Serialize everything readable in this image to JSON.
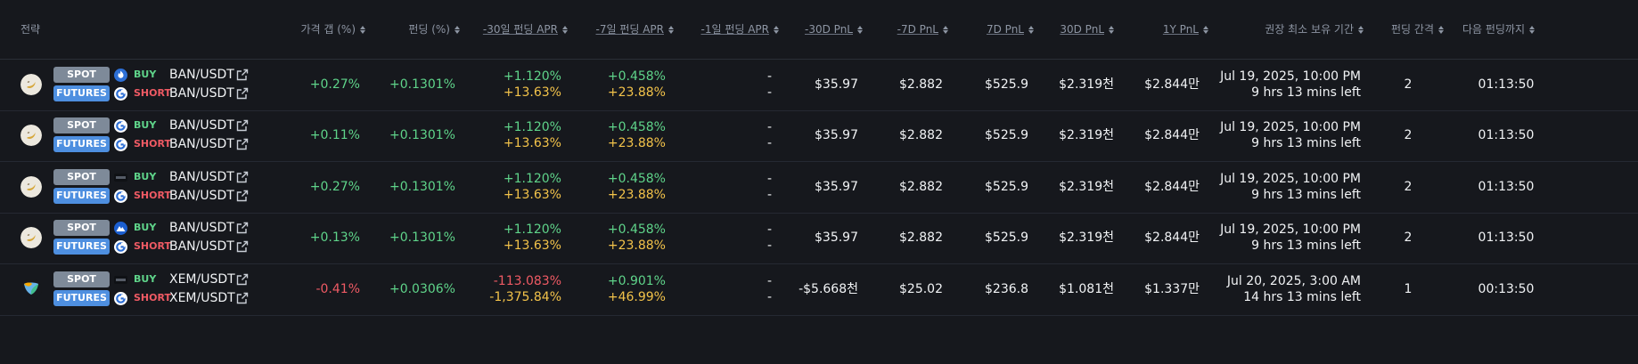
{
  "header": {
    "strategy": "전략",
    "price_gap": "가격 갭 (%)",
    "funding": "펀딩 (%)",
    "apr30": "-30일 펀딩 APR",
    "apr7": "-7일 펀딩 APR",
    "apr1": "-1일 펀딩 APR",
    "pnl30_past": "-30D PnL",
    "pnl7_past": "-7D PnL",
    "pnl7": "7D PnL",
    "pnl30": "30D PnL",
    "pnl1y": "1Y PnL",
    "hold": "권장 최소 보유 기간",
    "interval": "펀딩 간격",
    "next": "다음 펀딩까지"
  },
  "labels": {
    "spot": "SPOT",
    "futures": "FUTURES",
    "buy": "BUY",
    "short": "SHORT"
  },
  "rows": [
    {
      "coin_icon": "banano-coin-icon",
      "spot_exchange_icon": "flame-exchange-icon",
      "futures_exchange_icon": "cycle-exchange-icon",
      "spot_pair": "BAN/USDT",
      "futures_pair": "BAN/USDT",
      "price_gap": "+0.27%",
      "funding": "+0.1301%",
      "apr30_a": "+1.120%",
      "apr30_b": "+13.63%",
      "apr7_a": "+0.458%",
      "apr7_b": "+23.88%",
      "apr1_a": "-",
      "apr1_b": "-",
      "pnl30_past": "$35.97",
      "pnl7_past": "$2.882",
      "pnl7": "$525.9",
      "pnl30": "$2.319천",
      "pnl1y": "$2.844만",
      "hold_date": "Jul 19, 2025, 10:00 PM",
      "hold_left": "9 hrs 13 mins left",
      "interval": "2",
      "next": "01:13:50"
    },
    {
      "coin_icon": "banano-coin-icon",
      "spot_exchange_icon": "cycle-exchange-icon",
      "futures_exchange_icon": "cycle-exchange-icon",
      "spot_pair": "BAN/USDT",
      "futures_pair": "BAN/USDT",
      "price_gap": "+0.11%",
      "funding": "+0.1301%",
      "apr30_a": "+1.120%",
      "apr30_b": "+13.63%",
      "apr7_a": "+0.458%",
      "apr7_b": "+23.88%",
      "apr1_a": "-",
      "apr1_b": "-",
      "pnl30_past": "$35.97",
      "pnl7_past": "$2.882",
      "pnl7": "$525.9",
      "pnl30": "$2.319천",
      "pnl1y": "$2.844만",
      "hold_date": "Jul 19, 2025, 10:00 PM",
      "hold_left": "9 hrs 13 mins left",
      "interval": "2",
      "next": "01:13:50"
    },
    {
      "coin_icon": "banano-coin-icon",
      "spot_exchange_icon": "dark-exchange-icon",
      "futures_exchange_icon": "cycle-exchange-icon",
      "spot_pair": "BAN/USDT",
      "futures_pair": "BAN/USDT",
      "price_gap": "+0.27%",
      "funding": "+0.1301%",
      "apr30_a": "+1.120%",
      "apr30_b": "+13.63%",
      "apr7_a": "+0.458%",
      "apr7_b": "+23.88%",
      "apr1_a": "-",
      "apr1_b": "-",
      "pnl30_past": "$35.97",
      "pnl7_past": "$2.882",
      "pnl7": "$525.9",
      "pnl30": "$2.319천",
      "pnl1y": "$2.844만",
      "hold_date": "Jul 19, 2025, 10:00 PM",
      "hold_left": "9 hrs 13 mins left",
      "interval": "2",
      "next": "01:13:50"
    },
    {
      "coin_icon": "banano-coin-icon",
      "spot_exchange_icon": "mountain-exchange-icon",
      "futures_exchange_icon": "cycle-exchange-icon",
      "spot_pair": "BAN/USDT",
      "futures_pair": "BAN/USDT",
      "price_gap": "+0.13%",
      "funding": "+0.1301%",
      "apr30_a": "+1.120%",
      "apr30_b": "+13.63%",
      "apr7_a": "+0.458%",
      "apr7_b": "+23.88%",
      "apr1_a": "-",
      "apr1_b": "-",
      "pnl30_past": "$35.97",
      "pnl7_past": "$2.882",
      "pnl7": "$525.9",
      "pnl30": "$2.319천",
      "pnl1y": "$2.844만",
      "hold_date": "Jul 19, 2025, 10:00 PM",
      "hold_left": "9 hrs 13 mins left",
      "interval": "2",
      "next": "01:13:50"
    },
    {
      "coin_icon": "nem-coin-icon",
      "spot_exchange_icon": "dark-exchange-icon",
      "futures_exchange_icon": "cycle-exchange-icon",
      "spot_pair": "XEM/USDT",
      "futures_pair": "XEM/USDT",
      "price_gap": "-0.41%",
      "funding": "+0.0306%",
      "apr30_a": "-113.083%",
      "apr30_b": "-1,375.84%",
      "apr7_a": "+0.901%",
      "apr7_b": "+46.99%",
      "apr1_a": "-",
      "apr1_b": "-",
      "pnl30_past": "-$5.668천",
      "pnl7_past": "$25.02",
      "pnl7": "$236.8",
      "pnl30": "$1.081천",
      "pnl1y": "$1.337만",
      "hold_date": "Jul 20, 2025, 3:00 AM",
      "hold_left": "14 hrs 13 mins left",
      "interval": "1",
      "next": "00:13:50"
    }
  ],
  "colors": {
    "background": "#16181d",
    "positive": "#5fd48a",
    "negative": "#ef5a64",
    "apr_secondary": "#f3c34a",
    "spot_badge": "#7e8a99",
    "futures_badge": "#4e8fe0"
  }
}
